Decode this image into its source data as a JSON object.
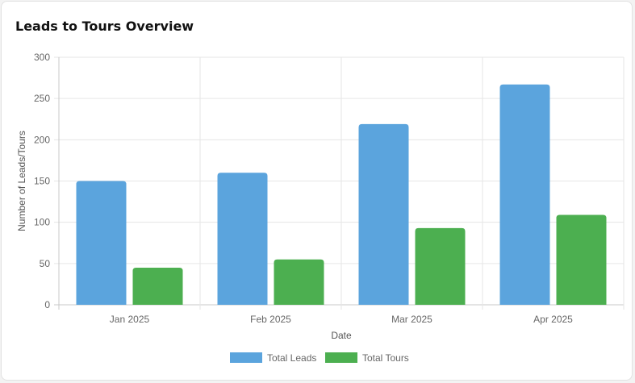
{
  "card": {
    "title": "Leads to Tours Overview"
  },
  "chart_data": {
    "type": "bar",
    "categories": [
      "Jan 2025",
      "Feb 2025",
      "Mar 2025",
      "Apr 2025"
    ],
    "series": [
      {
        "name": "Total Leads",
        "values": [
          150,
          160,
          219,
          267
        ],
        "color": "#5ba4dd"
      },
      {
        "name": "Total Tours",
        "values": [
          45,
          55,
          93,
          109
        ],
        "color": "#4caf50"
      }
    ],
    "title": "",
    "xlabel": "Date",
    "ylabel": "Number of Leads/Tours",
    "ylim": [
      0,
      300
    ],
    "yticks": [
      0,
      50,
      100,
      150,
      200,
      250,
      300
    ],
    "grid": true,
    "legend": "bottom"
  }
}
